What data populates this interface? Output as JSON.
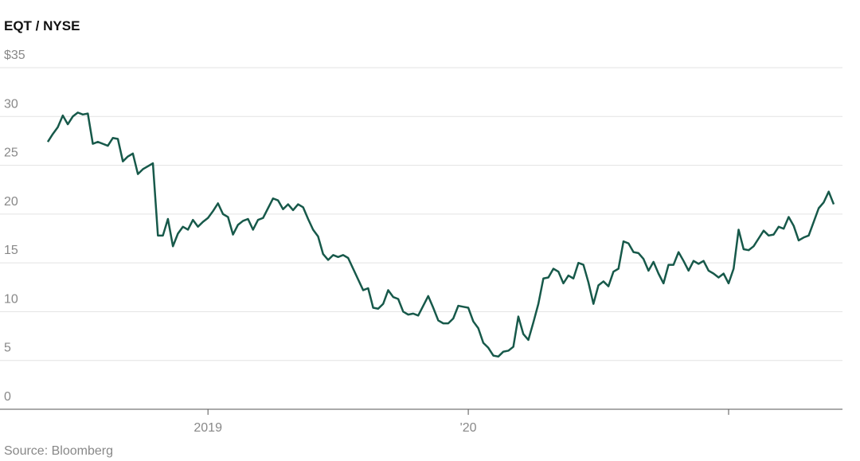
{
  "chart_data": {
    "type": "line",
    "title": "EQT / NYSE",
    "source": "Source: Bloomberg",
    "color": "#17594a",
    "grid": true,
    "values": [
      27.4,
      28.2,
      28.9,
      30.1,
      29.2,
      30.0,
      30.4,
      30.2,
      30.3,
      27.2,
      27.4,
      27.2,
      27.0,
      27.8,
      27.7,
      25.4,
      25.9,
      26.2,
      24.1,
      24.6,
      24.9,
      25.2,
      17.8,
      17.8,
      19.5,
      16.7,
      18.0,
      18.7,
      18.4,
      19.4,
      18.7,
      19.2,
      19.6,
      20.3,
      21.1,
      20.0,
      19.7,
      17.9,
      18.9,
      19.3,
      19.5,
      18.4,
      19.4,
      19.6,
      20.6,
      21.6,
      21.4,
      20.5,
      21.0,
      20.4,
      21.0,
      20.7,
      19.5,
      18.4,
      17.7,
      15.9,
      15.3,
      15.8,
      15.6,
      15.8,
      15.5,
      14.4,
      13.3,
      12.2,
      12.4,
      10.4,
      10.3,
      10.8,
      12.2,
      11.5,
      11.3,
      10.0,
      9.7,
      9.8,
      9.6,
      10.6,
      11.6,
      10.4,
      9.1,
      8.8,
      8.8,
      9.3,
      10.6,
      10.5,
      10.4,
      9.0,
      8.3,
      6.8,
      6.3,
      5.5,
      5.4,
      5.9,
      6.0,
      6.4,
      9.5,
      7.7,
      7.1,
      8.9,
      10.8,
      13.4,
      13.5,
      14.4,
      14.1,
      12.9,
      13.7,
      13.4,
      15.0,
      14.8,
      13.0,
      10.8,
      12.7,
      13.1,
      12.6,
      14.1,
      14.4,
      17.2,
      17.0,
      16.1,
      16.0,
      15.4,
      14.2,
      15.1,
      13.9,
      12.9,
      14.8,
      14.8,
      16.1,
      15.2,
      14.2,
      15.2,
      14.9,
      15.2,
      14.2,
      13.9,
      13.5,
      13.9,
      12.9,
      14.4,
      18.4,
      16.4,
      16.3,
      16.7,
      17.5,
      18.3,
      17.8,
      17.9,
      18.7,
      18.5,
      19.7,
      18.8,
      17.3,
      17.6,
      17.8,
      19.2,
      20.6,
      21.2,
      22.3,
      21.0
    ],
    "xlim": [
      0,
      157
    ],
    "xticks": [
      {
        "value": 32,
        "label": "2019"
      },
      {
        "value": 84,
        "label": "'20"
      },
      {
        "value": 136
      }
    ],
    "ylim": [
      0,
      35
    ],
    "yticks": [
      0,
      5,
      10,
      15,
      20,
      25,
      30,
      {
        "value": 35,
        "label": "$35"
      }
    ]
  }
}
